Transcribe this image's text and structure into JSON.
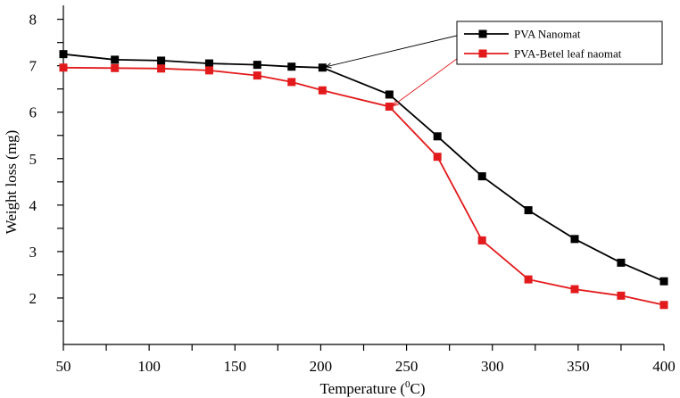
{
  "chart_data": {
    "type": "line",
    "title": "",
    "xlabel_prefix": "Temperature (",
    "xlabel_sup": "0",
    "xlabel_suffix": "C)",
    "ylabel": "Weight loss (mg)",
    "xlim": [
      50,
      400
    ],
    "ylim": [
      1.0,
      8.3
    ],
    "x_ticks": [
      "50",
      "100",
      "150",
      "200",
      "250",
      "300",
      "350",
      "400"
    ],
    "y_ticks": [
      "2",
      "3",
      "4",
      "5",
      "6",
      "7",
      "8"
    ],
    "legend_position": "top-right",
    "series": [
      {
        "name": "PVA Nanomat",
        "color": "#000000",
        "x": [
          50,
          80,
          107,
          135,
          163,
          183,
          201,
          240,
          268,
          294,
          321,
          348,
          375,
          400
        ],
        "y": [
          7.25,
          7.13,
          7.11,
          7.05,
          7.02,
          6.98,
          6.96,
          6.38,
          5.48,
          4.62,
          3.89,
          3.27,
          2.76,
          2.36
        ]
      },
      {
        "name": "PVA-Betel leaf naomat",
        "color": "#e31a1c",
        "x": [
          50,
          80,
          107,
          135,
          163,
          183,
          201,
          240,
          268,
          294,
          321,
          348,
          375,
          400
        ],
        "y": [
          6.96,
          6.95,
          6.94,
          6.9,
          6.79,
          6.65,
          6.47,
          6.12,
          5.04,
          3.24,
          2.4,
          2.19,
          2.05,
          1.85
        ]
      }
    ],
    "annotations": [
      {
        "from_series": 0,
        "target": [
          201,
          6.96
        ]
      },
      {
        "from_series": 1,
        "target": [
          240,
          6.12
        ]
      }
    ]
  }
}
